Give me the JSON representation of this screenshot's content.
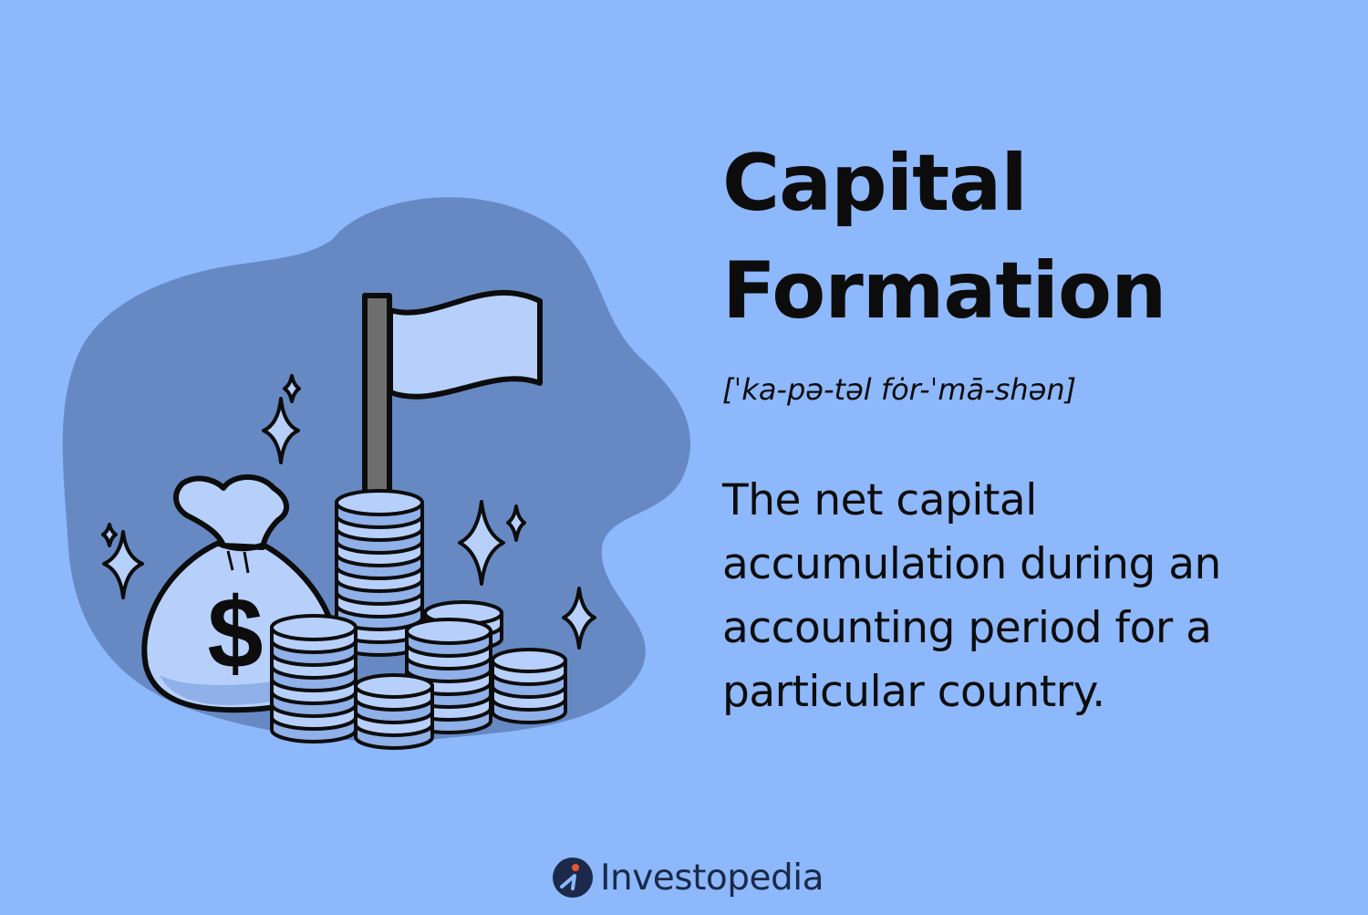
{
  "card": {
    "title_line1": "Capital",
    "title_line2": "Formation",
    "pronunciation": "[ˈka-pə-təl fȯr-ˈmā-shən]",
    "definition": "The net capital accumulation during an accounting period for a particular country."
  },
  "illustration": {
    "bag_symbol": "$",
    "icons": [
      "money-bag-icon",
      "flag-icon",
      "coin-stack-icon",
      "sparkle-icon"
    ]
  },
  "brand": {
    "name": "Investopedia",
    "icon": "investopedia-logo-icon"
  },
  "colors": {
    "background": "#8db8fb",
    "blob": "#6689c4",
    "coin_fill": "#b7d0fb",
    "coin_shadow": "#8fb0e8",
    "ink": "#0c0c0c",
    "brand_orange": "#e8552a",
    "brand_navy": "#1b2a4a"
  }
}
